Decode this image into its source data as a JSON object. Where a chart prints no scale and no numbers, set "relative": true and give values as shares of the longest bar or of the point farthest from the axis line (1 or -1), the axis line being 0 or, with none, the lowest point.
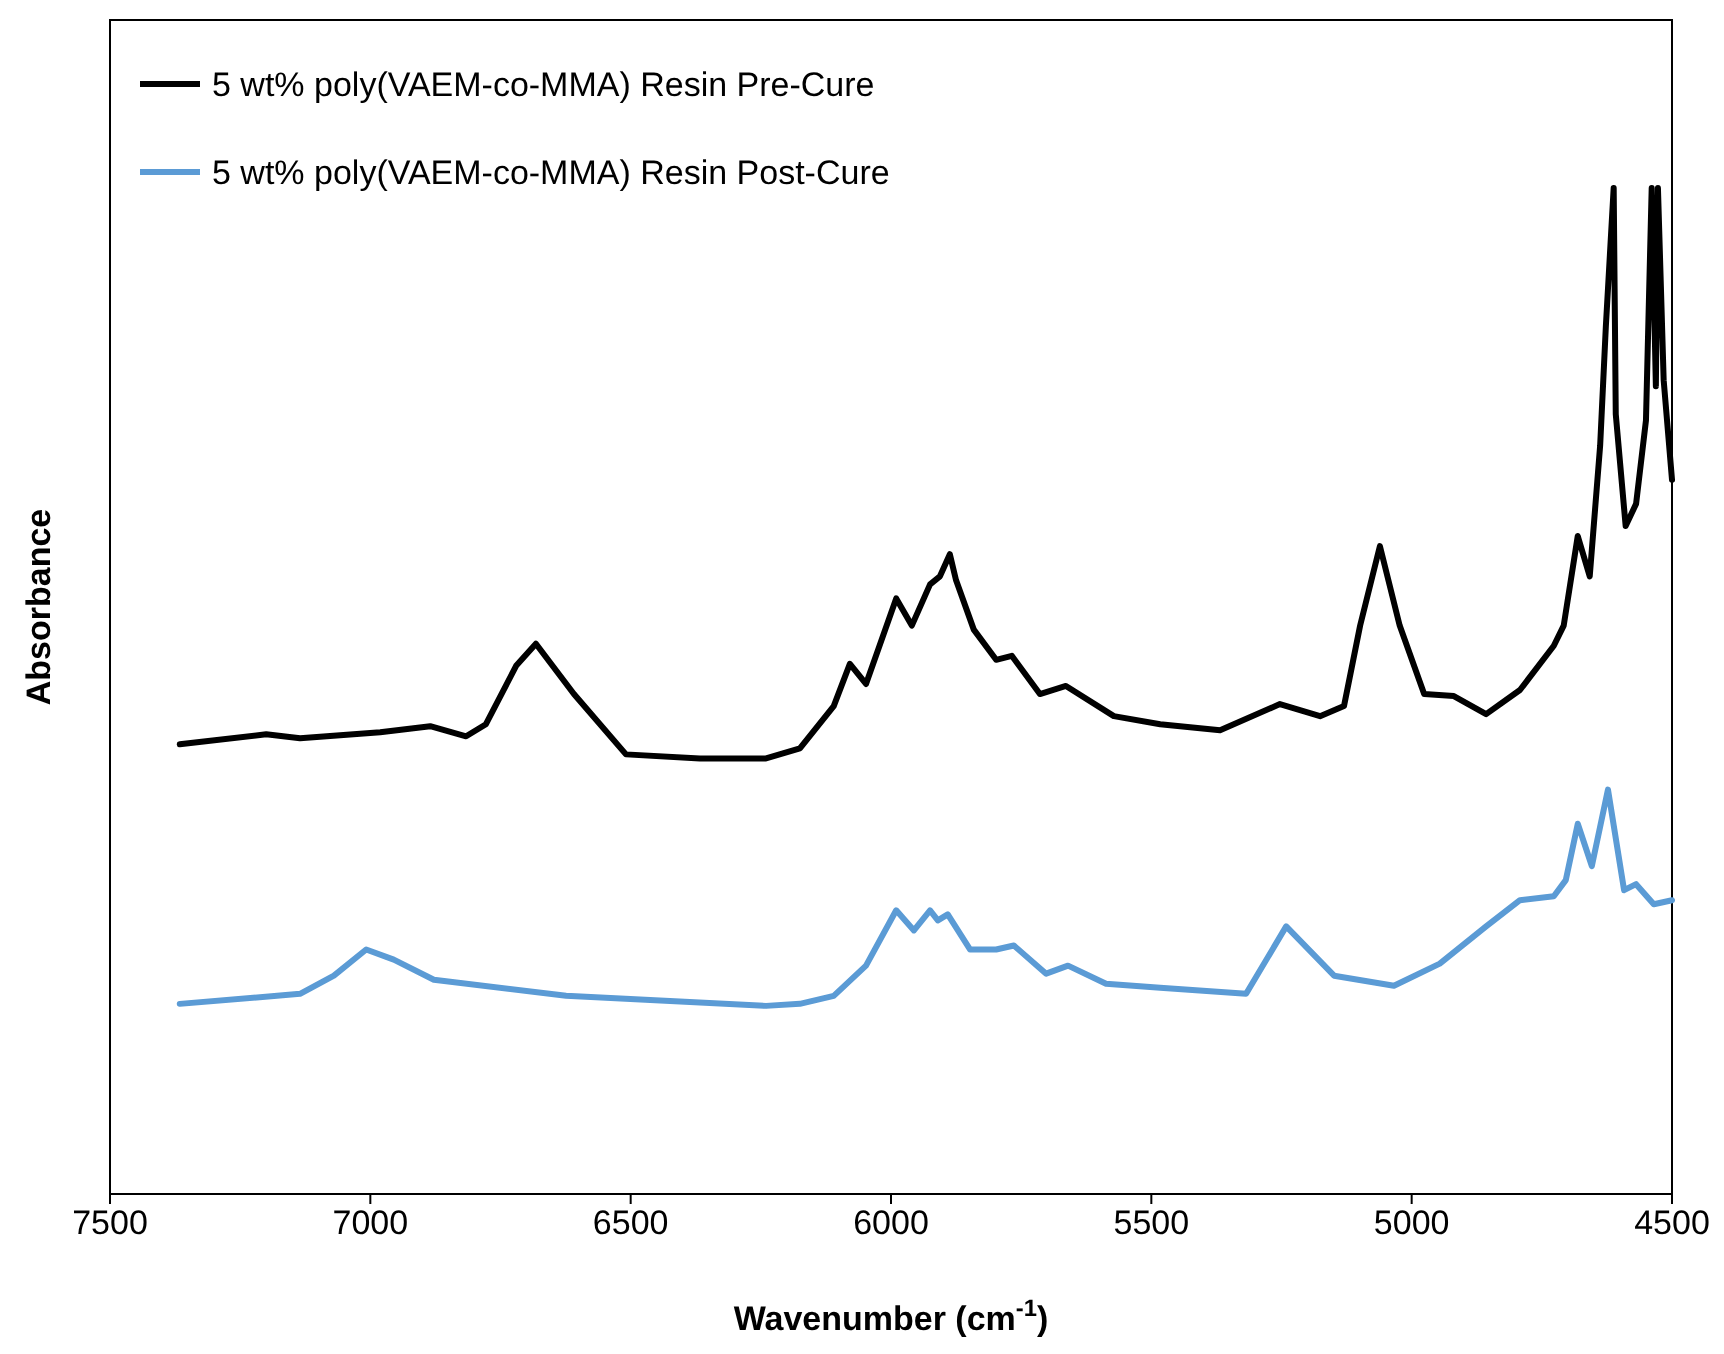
{
  "chart_data": {
    "type": "line",
    "relative": true,
    "xlabel": "Wavenumber (cm$^{-1}$)",
    "ylabel": "Absorbance",
    "xlim": [
      7500,
      4500
    ],
    "xticks": [
      7500,
      7000,
      6500,
      6000,
      5500,
      5000,
      4500
    ],
    "legend": "top left",
    "series": [
      {
        "name": "5 wt% poly(VAEM-co-MMA) Resin Pre-Cure",
        "color": "#000000",
        "x": [
          7366,
          7200,
          7135,
          6981,
          6885,
          6816,
          6778,
          6720,
          6682,
          6609,
          6509,
          6367,
          6240,
          6175,
          6110,
          6079,
          6048,
          5990,
          5960,
          5925,
          5906,
          5887,
          5875,
          5841,
          5798,
          5768,
          5714,
          5664,
          5572,
          5483,
          5368,
          5253,
          5176,
          5130,
          5099,
          5061,
          5023,
          4976,
          4919,
          4857,
          4792,
          4727,
          4708,
          4681,
          4658,
          4638,
          4627,
          4612,
          4608,
          4589,
          4569,
          4550,
          4539,
          4531,
          4527,
          4516,
          4500
        ],
        "values": [
          0.447,
          0.457,
          0.453,
          0.459,
          0.465,
          0.455,
          0.467,
          0.525,
          0.547,
          0.497,
          0.437,
          0.433,
          0.433,
          0.443,
          0.485,
          0.527,
          0.507,
          0.592,
          0.565,
          0.606,
          0.614,
          0.636,
          0.61,
          0.561,
          0.531,
          0.535,
          0.497,
          0.505,
          0.475,
          0.467,
          0.461,
          0.487,
          0.475,
          0.485,
          0.565,
          0.644,
          0.565,
          0.497,
          0.495,
          0.477,
          0.501,
          0.545,
          0.565,
          0.654,
          0.614,
          0.744,
          0.863,
          1,
          0.775,
          0.664,
          0.686,
          0.769,
          1,
          0.803,
          1,
          0.809,
          0.71
        ]
      },
      {
        "name": "5 wt% poly(VAEM-co-MMA) Resin Post-Cure",
        "color": "#5b9bd5",
        "x": [
          7366,
          7135,
          7070,
          7008,
          6955,
          6878,
          6624,
          6240,
          6175,
          6110,
          6048,
          5990,
          5956,
          5925,
          5910,
          5891,
          5848,
          5798,
          5764,
          5702,
          5660,
          5587,
          5483,
          5318,
          5241,
          5149,
          5034,
          4946,
          4857,
          4792,
          4727,
          4704,
          4681,
          4654,
          4623,
          4592,
          4569,
          4535,
          4500
        ],
        "values": [
          0.189,
          0.199,
          0.217,
          0.243,
          0.233,
          0.213,
          0.197,
          0.187,
          0.189,
          0.197,
          0.227,
          0.282,
          0.262,
          0.282,
          0.272,
          0.278,
          0.243,
          0.243,
          0.247,
          0.219,
          0.227,
          0.209,
          0.205,
          0.199,
          0.266,
          0.217,
          0.207,
          0.229,
          0.266,
          0.292,
          0.296,
          0.312,
          0.368,
          0.326,
          0.402,
          0.302,
          0.308,
          0.288,
          0.292
        ]
      }
    ]
  }
}
